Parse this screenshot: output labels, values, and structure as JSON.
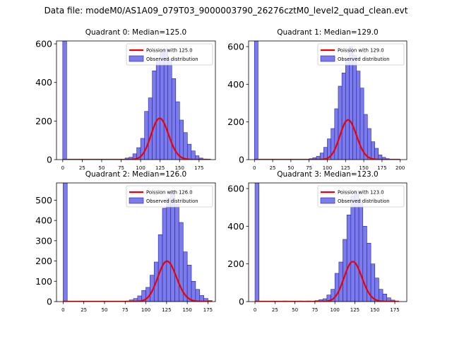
{
  "figure": {
    "suptitle": "Data file: modeM0/AS1A09_079T03_9000003790_26276cztM0_level2_quad_clean.evt"
  },
  "style": {
    "bar_fill": "#7b7bea",
    "bar_edge": "#2222aa",
    "poisson_line": "#ee0000",
    "axis": "#000000"
  },
  "chart_data": [
    {
      "type": "bar",
      "title": "Quadrant 0: Median=125.0",
      "legend": [
        "Poission with 125.0",
        "Observed distribution"
      ],
      "legend_loc": "upper right",
      "median": 125.0,
      "xlim": [
        -8,
        196
      ],
      "ylim": [
        0,
        615
      ],
      "xticks": [
        0,
        25,
        50,
        75,
        100,
        125,
        150,
        175
      ],
      "yticks": [
        0,
        200,
        400,
        600
      ],
      "bin_width": 5,
      "bins": [
        {
          "x": 0,
          "y": 615
        },
        {
          "x": 75,
          "y": 2
        },
        {
          "x": 80,
          "y": 8
        },
        {
          "x": 85,
          "y": 12
        },
        {
          "x": 90,
          "y": 30
        },
        {
          "x": 95,
          "y": 62
        },
        {
          "x": 100,
          "y": 110
        },
        {
          "x": 105,
          "y": 250
        },
        {
          "x": 110,
          "y": 320
        },
        {
          "x": 115,
          "y": 460
        },
        {
          "x": 120,
          "y": 510
        },
        {
          "x": 125,
          "y": 555
        },
        {
          "x": 130,
          "y": 575
        },
        {
          "x": 135,
          "y": 520
        },
        {
          "x": 140,
          "y": 420
        },
        {
          "x": 145,
          "y": 300
        },
        {
          "x": 150,
          "y": 205
        },
        {
          "x": 155,
          "y": 140
        },
        {
          "x": 160,
          "y": 80
        },
        {
          "x": 165,
          "y": 45
        },
        {
          "x": 170,
          "y": 20
        },
        {
          "x": 175,
          "y": 8
        },
        {
          "x": 180,
          "y": 3
        }
      ],
      "poisson": {
        "lambda": 125.0,
        "total": 6000,
        "x_range": [
          0,
          190
        ]
      }
    },
    {
      "type": "bar",
      "title": "Quadrant 1: Median=129.0",
      "legend": [
        "Poission with 129.0",
        "Observed distribution"
      ],
      "legend_loc": "upper right",
      "median": 129.0,
      "xlim": [
        -8,
        209
      ],
      "ylim": [
        0,
        630
      ],
      "xticks": [
        0,
        25,
        50,
        75,
        100,
        125,
        150,
        175,
        200
      ],
      "yticks": [
        0,
        200,
        400,
        600
      ],
      "bin_width": 5,
      "bins": [
        {
          "x": 0,
          "y": 630
        },
        {
          "x": 75,
          "y": 5
        },
        {
          "x": 80,
          "y": 10
        },
        {
          "x": 85,
          "y": 18
        },
        {
          "x": 90,
          "y": 35
        },
        {
          "x": 95,
          "y": 65
        },
        {
          "x": 100,
          "y": 110
        },
        {
          "x": 105,
          "y": 165
        },
        {
          "x": 110,
          "y": 270
        },
        {
          "x": 115,
          "y": 390
        },
        {
          "x": 120,
          "y": 460
        },
        {
          "x": 125,
          "y": 530
        },
        {
          "x": 130,
          "y": 600
        },
        {
          "x": 135,
          "y": 555
        },
        {
          "x": 140,
          "y": 470
        },
        {
          "x": 145,
          "y": 380
        },
        {
          "x": 150,
          "y": 240
        },
        {
          "x": 155,
          "y": 165
        },
        {
          "x": 160,
          "y": 95
        },
        {
          "x": 165,
          "y": 60
        },
        {
          "x": 170,
          "y": 25
        },
        {
          "x": 175,
          "y": 12
        },
        {
          "x": 180,
          "y": 5
        }
      ],
      "poisson": {
        "lambda": 129.0,
        "total": 6000,
        "x_range": [
          0,
          200
        ]
      }
    },
    {
      "type": "bar",
      "title": "Quadrant 2: Median=126.0",
      "legend": [
        "Poission with 126.0",
        "Observed distribution"
      ],
      "legend_loc": "upper right",
      "median": 126.0,
      "xlim": [
        -8,
        184
      ],
      "ylim": [
        0,
        585
      ],
      "xticks": [
        0,
        25,
        50,
        75,
        100,
        125,
        150,
        175
      ],
      "yticks": [
        0,
        100,
        200,
        300,
        400,
        500
      ],
      "bin_width": 5,
      "bins": [
        {
          "x": 0,
          "y": 585
        },
        {
          "x": 75,
          "y": 3
        },
        {
          "x": 80,
          "y": 8
        },
        {
          "x": 85,
          "y": 15
        },
        {
          "x": 90,
          "y": 28
        },
        {
          "x": 95,
          "y": 55
        },
        {
          "x": 100,
          "y": 70
        },
        {
          "x": 105,
          "y": 130
        },
        {
          "x": 110,
          "y": 195
        },
        {
          "x": 115,
          "y": 330
        },
        {
          "x": 120,
          "y": 460
        },
        {
          "x": 125,
          "y": 510
        },
        {
          "x": 130,
          "y": 545
        },
        {
          "x": 135,
          "y": 480
        },
        {
          "x": 140,
          "y": 390
        },
        {
          "x": 145,
          "y": 245
        },
        {
          "x": 150,
          "y": 180
        },
        {
          "x": 155,
          "y": 100
        },
        {
          "x": 160,
          "y": 60
        },
        {
          "x": 165,
          "y": 30
        },
        {
          "x": 170,
          "y": 15
        },
        {
          "x": 175,
          "y": 5
        }
      ],
      "poisson": {
        "lambda": 126.0,
        "total": 5600,
        "x_range": [
          0,
          180
        ]
      }
    },
    {
      "type": "bar",
      "title": "Quadrant 3: Median=123.0",
      "legend": [
        "Poission with 123.0",
        "Observed distribution"
      ],
      "legend_loc": "upper right",
      "median": 123.0,
      "xlim": [
        -8,
        190
      ],
      "ylim": [
        0,
        630
      ],
      "xticks": [
        0,
        25,
        50,
        75,
        100,
        125,
        150,
        175
      ],
      "yticks": [
        0,
        200,
        400,
        600
      ],
      "bin_width": 5,
      "bins": [
        {
          "x": 0,
          "y": 630
        },
        {
          "x": 35,
          "y": 3
        },
        {
          "x": 55,
          "y": 3
        },
        {
          "x": 65,
          "y": 3
        },
        {
          "x": 75,
          "y": 5
        },
        {
          "x": 80,
          "y": 10
        },
        {
          "x": 85,
          "y": 15
        },
        {
          "x": 90,
          "y": 35
        },
        {
          "x": 95,
          "y": 65
        },
        {
          "x": 100,
          "y": 150
        },
        {
          "x": 105,
          "y": 210
        },
        {
          "x": 110,
          "y": 330
        },
        {
          "x": 115,
          "y": 460
        },
        {
          "x": 120,
          "y": 560
        },
        {
          "x": 125,
          "y": 590
        },
        {
          "x": 130,
          "y": 540
        },
        {
          "x": 135,
          "y": 400
        },
        {
          "x": 140,
          "y": 310
        },
        {
          "x": 145,
          "y": 200
        },
        {
          "x": 150,
          "y": 125
        },
        {
          "x": 155,
          "y": 65
        },
        {
          "x": 160,
          "y": 40
        },
        {
          "x": 165,
          "y": 20
        },
        {
          "x": 170,
          "y": 8
        },
        {
          "x": 175,
          "y": 3
        }
      ],
      "poisson": {
        "lambda": 123.0,
        "total": 5900,
        "x_range": [
          0,
          180
        ]
      }
    }
  ]
}
